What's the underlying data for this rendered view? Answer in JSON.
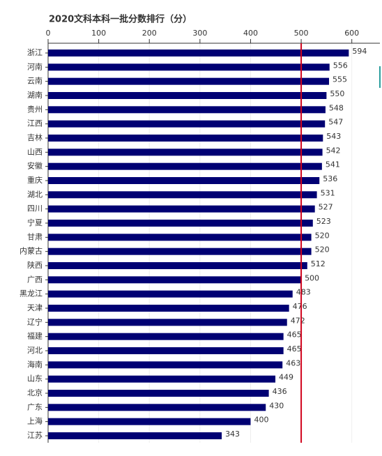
{
  "chart_data": {
    "type": "hbar",
    "title": "2020文科本科一批分数排行（分）",
    "categories": [
      "浙江",
      "河南",
      "云南",
      "湖南",
      "贵州",
      "江西",
      "吉林",
      "山西",
      "安徽",
      "重庆",
      "湖北",
      "四川",
      "宁夏",
      "甘肃",
      "内蒙古",
      "陕西",
      "广西",
      "黑龙江",
      "天津",
      "辽宁",
      "福建",
      "河北",
      "海南",
      "山东",
      "北京",
      "广东",
      "上海",
      "江苏"
    ],
    "values": [
      594,
      556,
      555,
      550,
      548,
      547,
      543,
      542,
      541,
      536,
      531,
      527,
      523,
      520,
      520,
      512,
      500,
      483,
      476,
      472,
      465,
      465,
      463,
      449,
      436,
      430,
      400,
      343
    ],
    "color": "#000073",
    "xlim": [
      0,
      650
    ],
    "xticks": [
      0,
      100,
      200,
      300,
      400,
      500,
      600
    ],
    "grid": true,
    "reference_line": {
      "value": 500,
      "color": "#d0021b"
    }
  }
}
